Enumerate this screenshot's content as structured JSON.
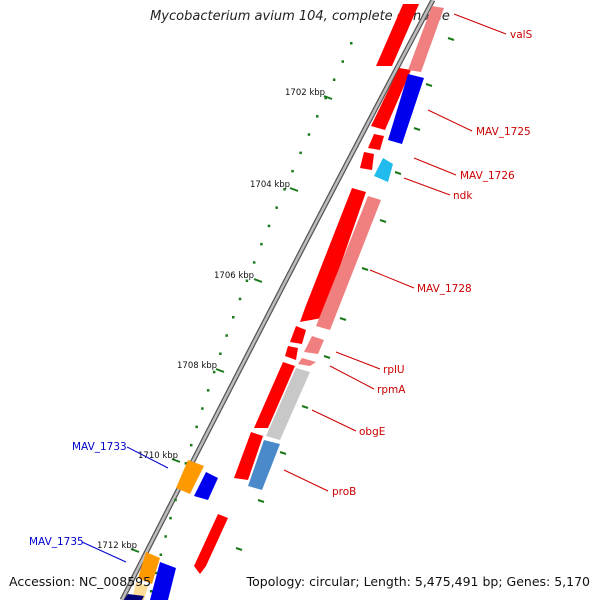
{
  "title": "Mycobacterium avium 104, complete genome",
  "footer": {
    "accession": "Accession: NC_008595",
    "topology": "Topology: circular; Length: 5,475,491 bp; Genes: 5,170"
  },
  "scale_labels": [
    "1702 kbp",
    "1704 kbp",
    "1706 kbp",
    "1708 kbp",
    "1710 kbp",
    "1712 kbp"
  ],
  "colors": {
    "forward_gene": "#ff0000",
    "reverse_gene": "#f08080",
    "blue_gene": "#0000ee",
    "cyan_gene": "#22bbee",
    "gray_gene": "#c8c8c8",
    "steel_gene": "#4a8acb",
    "orange_gene": "#ff9900",
    "tick": "#1a7a1a",
    "red_label": "#cc0000",
    "blue_label": "#0000cc"
  },
  "gene_labels": [
    {
      "name": "valS",
      "color": "red"
    },
    {
      "name": "MAV_1725",
      "color": "red"
    },
    {
      "name": "MAV_1726",
      "color": "red"
    },
    {
      "name": "ndk",
      "color": "red"
    },
    {
      "name": "MAV_1728",
      "color": "red"
    },
    {
      "name": "rplU",
      "color": "red"
    },
    {
      "name": "rpmA",
      "color": "red"
    },
    {
      "name": "obgE",
      "color": "red"
    },
    {
      "name": "proB",
      "color": "red"
    },
    {
      "name": "MAV_1733",
      "color": "blue"
    },
    {
      "name": "MAV_1735",
      "color": "blue"
    }
  ]
}
